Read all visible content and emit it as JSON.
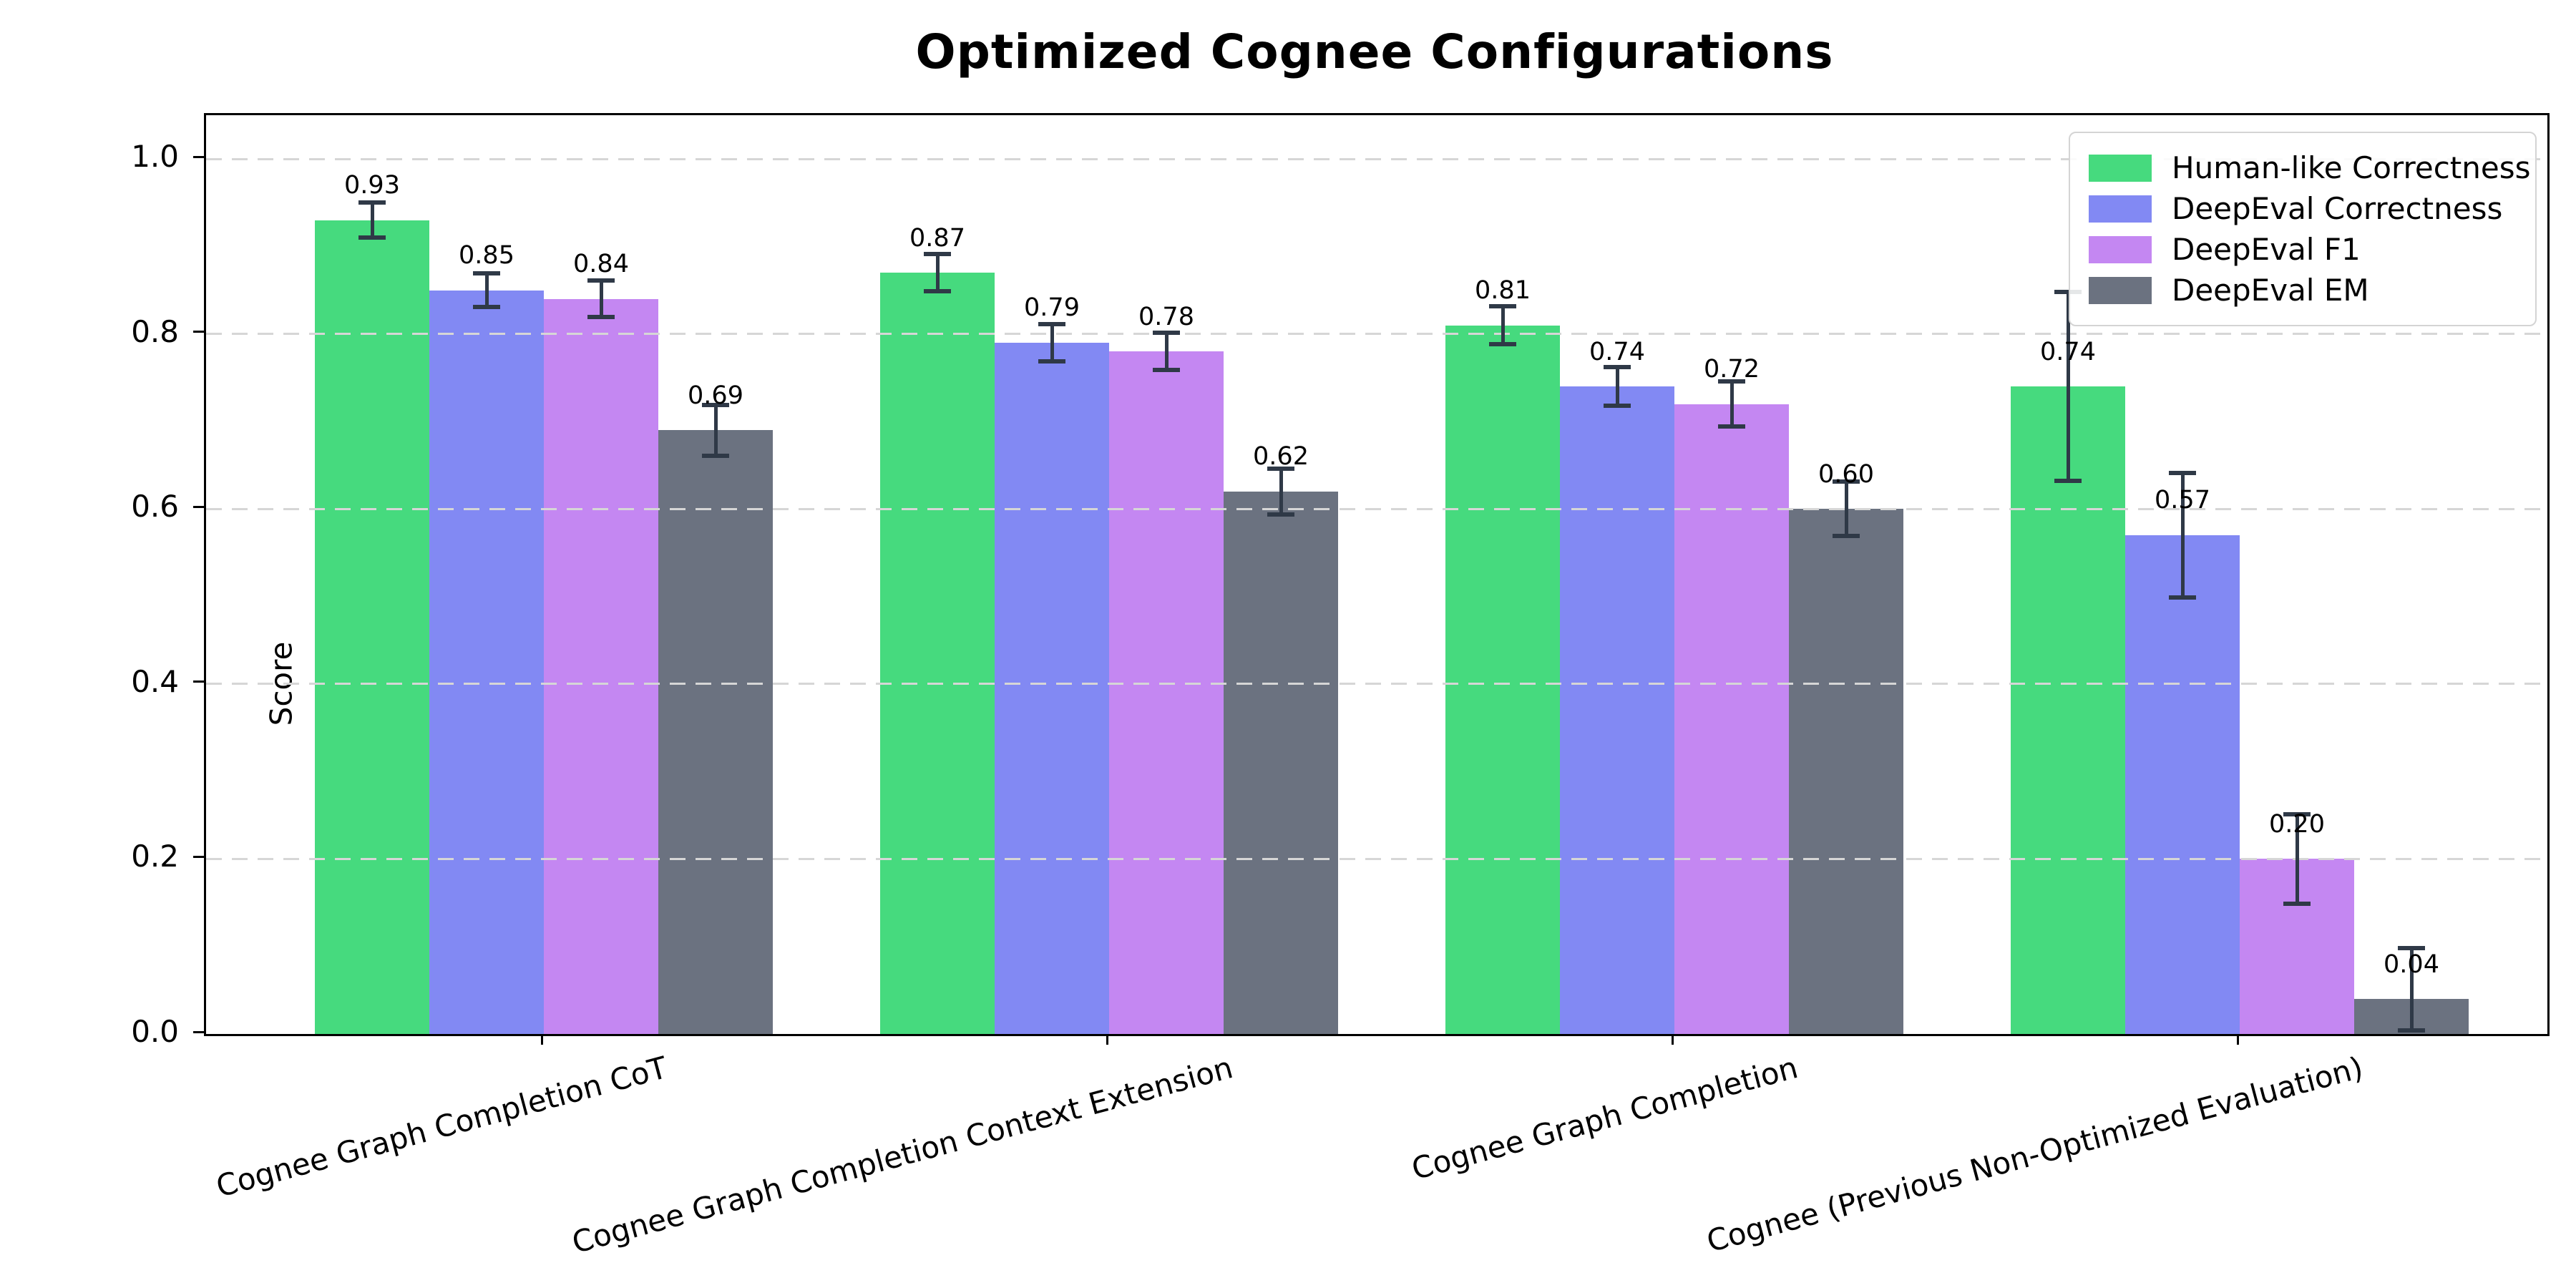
{
  "title": "Optimized Cognee Configurations",
  "chart_data": {
    "type": "bar",
    "title": "Optimized Cognee Configurations",
    "xlabel": "",
    "ylabel": "Score",
    "ylim": [
      0,
      1.05
    ],
    "yticks": [
      "0.0",
      "0.2",
      "0.4",
      "0.6",
      "0.8",
      "1.0"
    ],
    "grid": "horizontal-dashed",
    "gridline_color": "#d6d6d6",
    "legend_position": "upper-right",
    "error_bar_color": "#2f3947",
    "categories": [
      "Cognee Graph Completion CoT",
      "Cognee Graph Completion Context Extension",
      "Cognee Graph Completion",
      "Cognee (Previous Non-Optimized Evaluation)"
    ],
    "series": [
      {
        "name": "Human-like Correctness",
        "color": "#46da7e",
        "values": [
          0.93,
          0.87,
          0.81,
          0.74
        ],
        "errors": [
          0.02,
          0.021,
          0.022,
          0.108
        ]
      },
      {
        "name": "DeepEval Correctness",
        "color": "#8289f3",
        "values": [
          0.85,
          0.79,
          0.74,
          0.57
        ],
        "errors": [
          0.019,
          0.021,
          0.022,
          0.071
        ]
      },
      {
        "name": "DeepEval F1",
        "color": "#c487f2",
        "values": [
          0.84,
          0.78,
          0.72,
          0.2
        ],
        "errors": [
          0.021,
          0.021,
          0.026,
          0.051
        ]
      },
      {
        "name": "DeepEval EM",
        "color": "#6b7280",
        "values": [
          0.69,
          0.62,
          0.6,
          0.04
        ],
        "errors": [
          0.029,
          0.026,
          0.031,
          0.058
        ]
      }
    ]
  }
}
